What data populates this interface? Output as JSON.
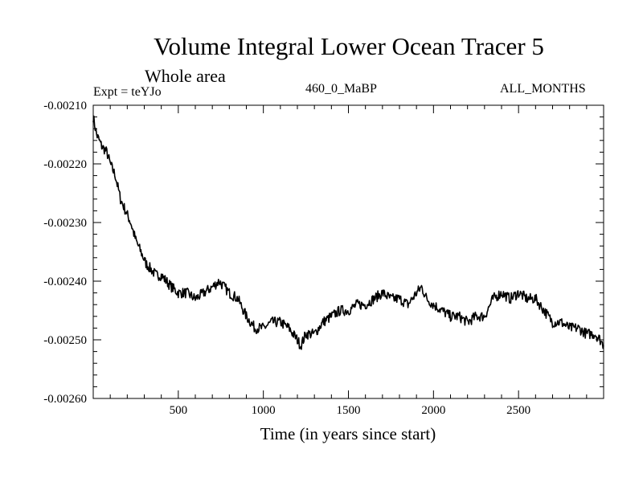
{
  "chart_data": {
    "type": "line",
    "title": "Volume Integral Lower Ocean Tracer 5",
    "subtitle": "Whole area",
    "experiment_label": "Expt = teYJo",
    "period_label": "460_0_MaBP",
    "season_label": "ALL_MONTHS",
    "xlabel": "Time (in years since start)",
    "ylabel": "",
    "xlim": [
      0,
      3000
    ],
    "ylim": [
      -0.0026,
      -0.0021
    ],
    "x_ticks": [
      500,
      1000,
      1500,
      2000,
      2500
    ],
    "x_tick_labels": [
      "500",
      "1000",
      "1500",
      "2000",
      "2500"
    ],
    "y_ticks": [
      -0.0021,
      -0.0022,
      -0.0023,
      -0.0024,
      -0.0025,
      -0.0026
    ],
    "y_tick_labels": [
      "-0.00210",
      "-0.00220",
      "-0.00230",
      "-0.00240",
      "-0.00250",
      "-0.00260"
    ],
    "series": [
      {
        "name": "Volume Integral Lower Ocean Tracer 5",
        "x": [
          0,
          20,
          50,
          80,
          100,
          130,
          160,
          190,
          220,
          250,
          280,
          310,
          340,
          370,
          400,
          430,
          460,
          500,
          550,
          600,
          650,
          700,
          740,
          800,
          850,
          900,
          950,
          1000,
          1050,
          1100,
          1150,
          1200,
          1220,
          1250,
          1300,
          1350,
          1400,
          1450,
          1500,
          1550,
          1600,
          1650,
          1700,
          1750,
          1800,
          1850,
          1900,
          1930,
          1960,
          2000,
          2050,
          2100,
          2150,
          2200,
          2250,
          2300,
          2350,
          2400,
          2450,
          2500,
          2550,
          2600,
          2650,
          2700,
          2750,
          2800,
          2850,
          2900,
          2950,
          2980,
          3000
        ],
        "y": [
          -0.00212,
          -0.00215,
          -0.00217,
          -0.00218,
          -0.0022,
          -0.00222,
          -0.00226,
          -0.00228,
          -0.0023,
          -0.00233,
          -0.00235,
          -0.00237,
          -0.00238,
          -0.00239,
          -0.00239,
          -0.0024,
          -0.00241,
          -0.00242,
          -0.00242,
          -0.00243,
          -0.00242,
          -0.00241,
          -0.0024,
          -0.00242,
          -0.00243,
          -0.00246,
          -0.00248,
          -0.00248,
          -0.00247,
          -0.00247,
          -0.00248,
          -0.0025,
          -0.00251,
          -0.00249,
          -0.00249,
          -0.00247,
          -0.00246,
          -0.00245,
          -0.00245,
          -0.00244,
          -0.00244,
          -0.00243,
          -0.00242,
          -0.00243,
          -0.00243,
          -0.00244,
          -0.00242,
          -0.00241,
          -0.00243,
          -0.00244,
          -0.00245,
          -0.00246,
          -0.00246,
          -0.00247,
          -0.00246,
          -0.00246,
          -0.00243,
          -0.00242,
          -0.00243,
          -0.00242,
          -0.00243,
          -0.00243,
          -0.00245,
          -0.00247,
          -0.00247,
          -0.00248,
          -0.00248,
          -0.00249,
          -0.00249,
          -0.0025,
          -0.00251
        ]
      }
    ]
  }
}
